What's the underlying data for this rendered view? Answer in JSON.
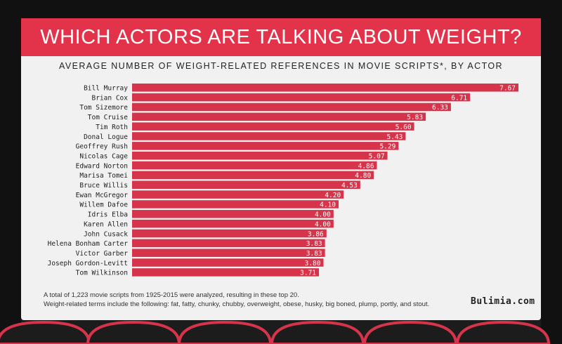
{
  "header": {
    "title": "WHICH ACTORS ARE TALKING ABOUT WEIGHT?",
    "subtitle": "AVERAGE NUMBER OF WEIGHT-RELATED REFERENCES IN MOVIE SCRIPTS*, BY ACTOR"
  },
  "footer": {
    "note_line1": "A total of 1,223 movie scripts from 1925-2015 were analyzed, resulting in these top 20.",
    "note_line2": "Weight-related terms include the following: fat, fatty, chunky, chubby, overweight, obese, husky, big boned, plump, portly, and stout.",
    "brand": "Bulimia.com"
  },
  "colors": {
    "bar": "#d6344a",
    "banner": "#e3334a",
    "screen": "#f1f1f1",
    "curtain": "#111111",
    "seat": "#d6344a"
  },
  "chart_data": {
    "type": "bar",
    "orientation": "horizontal",
    "categories": [
      "Bill Murray",
      "Brian Cox",
      "Tom Sizemore",
      "Tom Cruise",
      "Tim Roth",
      "Donal Logue",
      "Geoffrey Rush",
      "Nicolas Cage",
      "Edward Norton",
      "Marisa Tomei",
      "Bruce Willis",
      "Ewan McGregor",
      "Willem Dafoe",
      "Idris Elba",
      "Karen Allen",
      "John Cusack",
      "Helena Bonham Carter",
      "Victor Garber",
      "Joseph Gordon-Levitt",
      "Tom Wilkinson"
    ],
    "values": [
      7.67,
      6.71,
      6.33,
      5.83,
      5.6,
      5.43,
      5.29,
      5.07,
      4.86,
      4.8,
      4.53,
      4.2,
      4.1,
      4.0,
      4.0,
      3.86,
      3.83,
      3.83,
      3.8,
      3.71
    ],
    "value_labels": [
      "7.67",
      "6.71",
      "6.33",
      "5.83",
      "5.60",
      "5.43",
      "5.29",
      "5.07",
      "4.86",
      "4.80",
      "4.53",
      "4.20",
      "4.10",
      "4.00",
      "4.00",
      "3.86",
      "3.83",
      "3.83",
      "3.80",
      "3.71"
    ],
    "xlim": [
      0,
      7.67
    ],
    "grid": false,
    "legend": "none"
  }
}
